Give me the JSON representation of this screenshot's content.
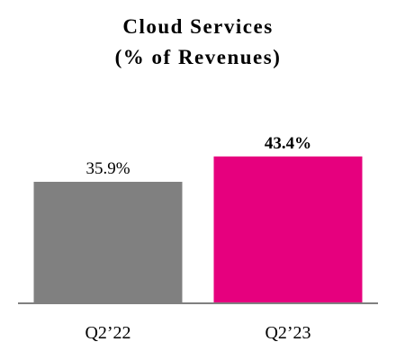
{
  "chart_data": {
    "type": "bar",
    "title": "Cloud Services",
    "subtitle": "(% of Revenues)",
    "categories": [
      "Q2’22",
      "Q2’23"
    ],
    "series": [
      {
        "values": [
          35.9,
          43.4
        ],
        "data_labels": [
          "35.9%",
          "43.4%"
        ]
      }
    ],
    "bar_colors": [
      "#808080",
      "#E6007E"
    ],
    "data_label_bold": [
      false,
      true
    ],
    "ylim": [
      0,
      50
    ],
    "grid": false,
    "legend": "none",
    "xlabel": "",
    "ylabel": ""
  }
}
